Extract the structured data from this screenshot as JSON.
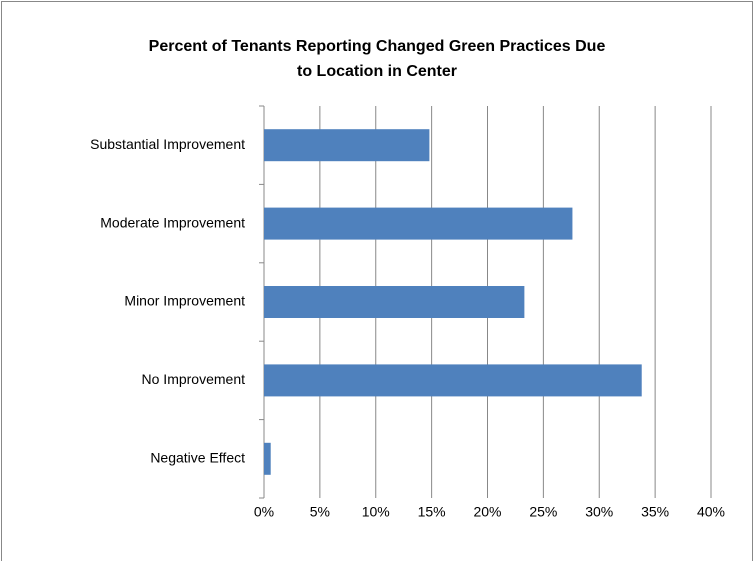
{
  "chart_data": {
    "type": "bar",
    "orientation": "horizontal",
    "title": [
      "Percent of Tenants Reporting Changed Green Practices Due",
      "to Location in Center"
    ],
    "categories": [
      "Substantial Improvement",
      "Moderate Improvement",
      "Minor Improvement",
      "No Improvement",
      "Negative Effect"
    ],
    "values": [
      14.8,
      27.6,
      23.3,
      33.8,
      0.6
    ],
    "color": "#4f81bd",
    "xlim": [
      0,
      40
    ],
    "xticks": [
      {
        "value": 0,
        "label": "0%"
      },
      {
        "value": 5,
        "label": "5%"
      },
      {
        "value": 10,
        "label": "10%"
      },
      {
        "value": 15,
        "label": "15%"
      },
      {
        "value": 20,
        "label": "20%"
      },
      {
        "value": 25,
        "label": "25%"
      },
      {
        "value": 30,
        "label": "30%"
      },
      {
        "value": 35,
        "label": "35%"
      },
      {
        "value": 40,
        "label": "40%"
      }
    ],
    "grid": true
  }
}
